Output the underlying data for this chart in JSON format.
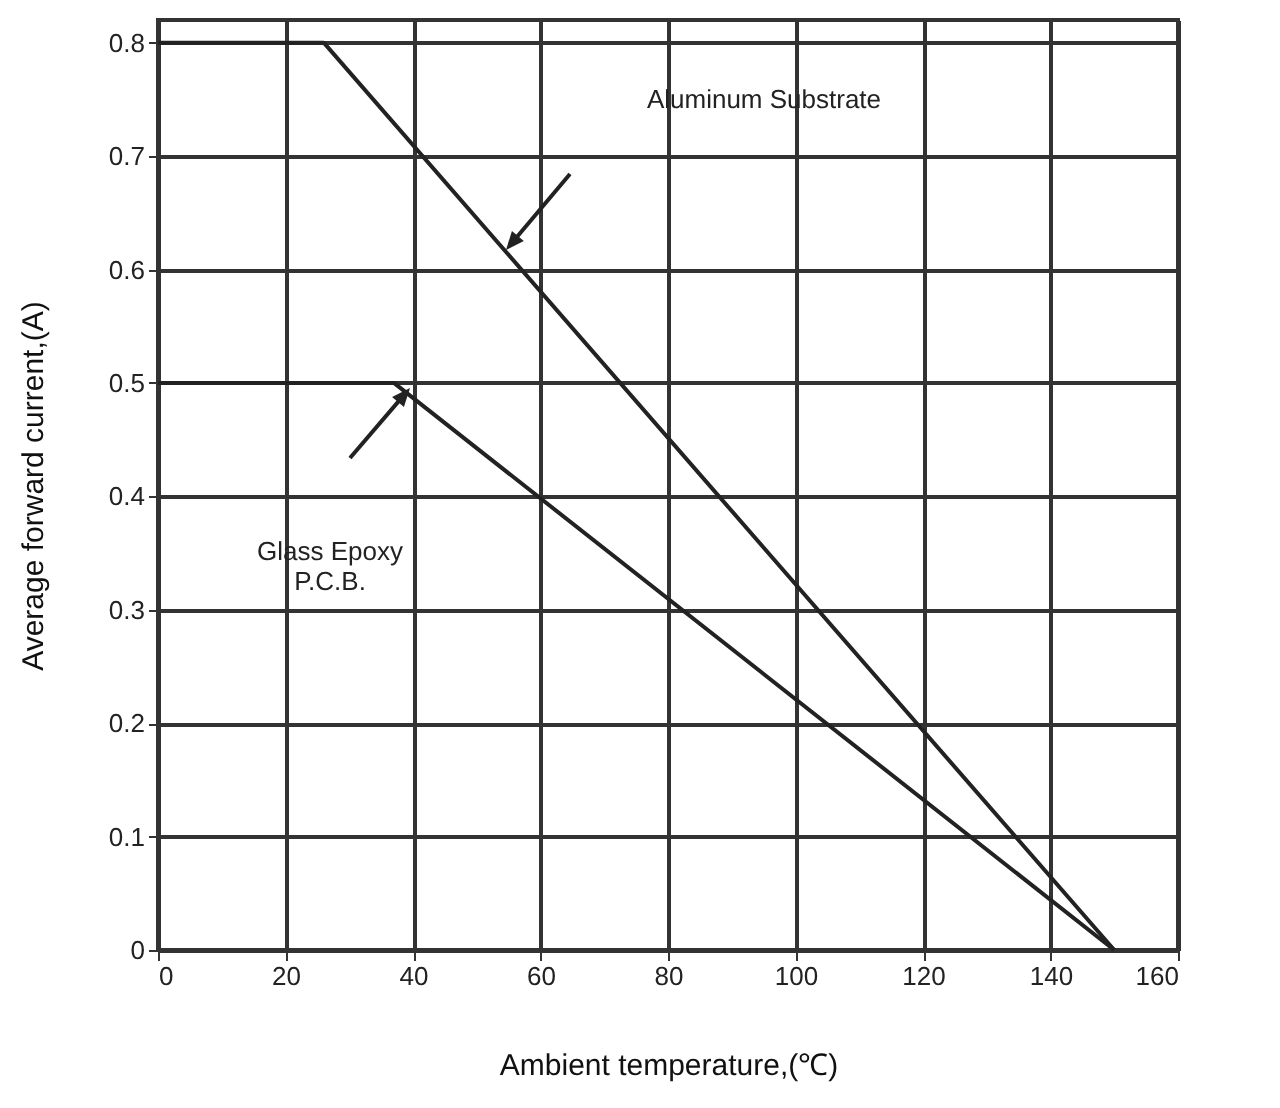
{
  "chart_data": {
    "type": "line",
    "xlabel": "Ambient  temperature,(℃)",
    "ylabel": "Average forward current,(A)",
    "series": [
      {
        "color": "#222222",
        "x": [
          0,
          26,
          150
        ],
        "values": [
          0.8,
          0.8,
          0
        ]
      },
      {
        "color": "#222222",
        "x": [
          0,
          37,
          150
        ],
        "values": [
          0.5,
          0.5,
          0
        ]
      }
    ],
    "annotations": [
      "Aluminum Substrate",
      "Glass Epoxy\nP.C.B."
    ],
    "xlim": [
      0,
      160
    ],
    "xticks": [
      0,
      20,
      40,
      60,
      80,
      100,
      120,
      140,
      160
    ],
    "ylim": [
      0,
      0.82
    ],
    "yticks": [
      0,
      0.1,
      0.2,
      0.3,
      0.4,
      0.5,
      0.6,
      0.7,
      0.8
    ],
    "grid": true,
    "marker": "none",
    "line_style": "solid"
  }
}
